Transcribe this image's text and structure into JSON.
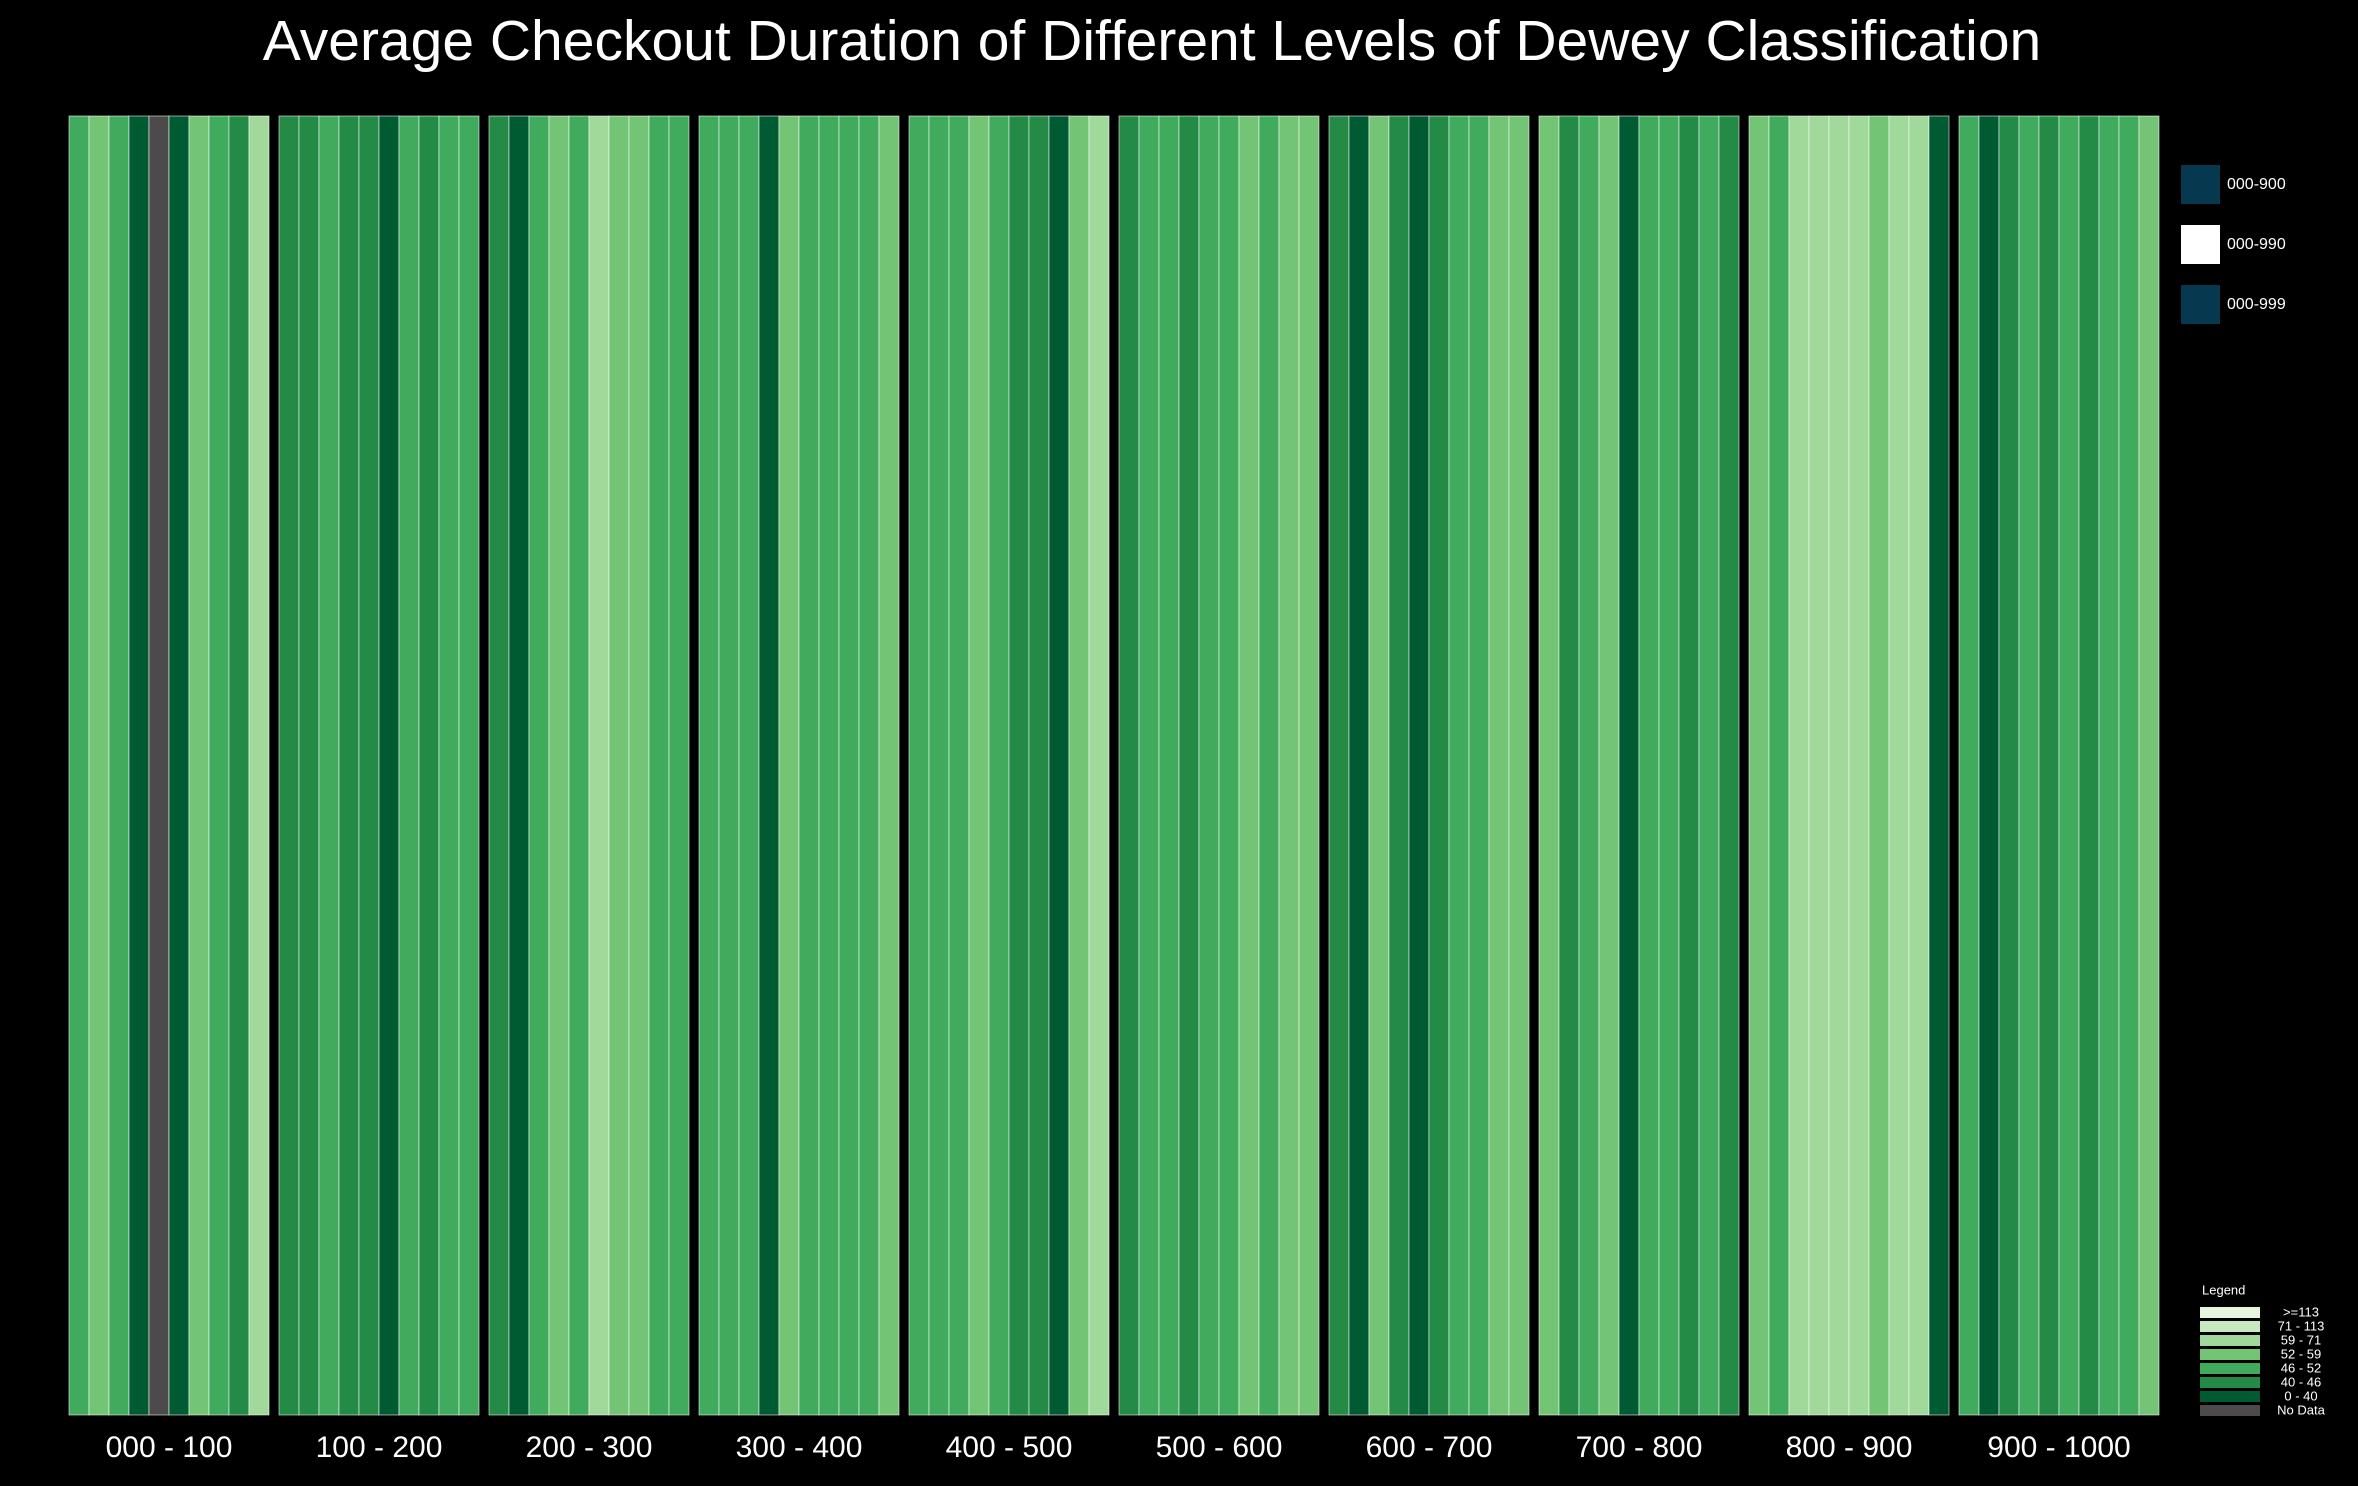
{
  "chart_data": {
    "type": "heatmap",
    "title": "Average Checkout Duration of Different Levels of Dewey Classification",
    "categories": [
      "000 - 100",
      "100 - 200",
      "200 - 300",
      "300 - 400",
      "400 - 500",
      "500 - 600",
      "600 - 700",
      "700 - 800",
      "800 - 900",
      "900 - 1000"
    ],
    "values": [
      [
        49,
        55,
        49,
        35,
        null,
        35,
        55,
        49,
        43,
        65
      ],
      [
        43,
        43,
        49,
        43,
        43,
        35,
        49,
        43,
        49,
        49
      ],
      [
        43,
        35,
        49,
        55,
        49,
        65,
        55,
        55,
        49,
        49
      ],
      [
        49,
        49,
        49,
        35,
        55,
        49,
        49,
        49,
        49,
        55
      ],
      [
        49,
        49,
        49,
        55,
        49,
        43,
        43,
        35,
        55,
        65
      ],
      [
        43,
        49,
        49,
        43,
        49,
        49,
        55,
        49,
        55,
        55
      ],
      [
        43,
        35,
        55,
        43,
        35,
        43,
        49,
        49,
        55,
        55
      ],
      [
        55,
        43,
        49,
        55,
        35,
        49,
        49,
        43,
        49,
        43
      ],
      [
        55,
        49,
        65,
        65,
        65,
        65,
        55,
        65,
        65,
        35
      ],
      [
        49,
        35,
        43,
        49,
        43,
        49,
        43,
        49,
        49,
        55
      ]
    ],
    "range_legend": [
      {
        "label": "000-900",
        "color": "#06384f"
      },
      {
        "label": "000-990",
        "color": "#ffffff"
      },
      {
        "label": "000-999",
        "color": "#06384f"
      }
    ],
    "legend_title": "Legend",
    "legend": [
      {
        "label": ">=113",
        "min": 113,
        "color": "#e5f5e0"
      },
      {
        "label": "71 - 113",
        "min": 71,
        "color": "#c7e9c0"
      },
      {
        "label": "59 - 71",
        "min": 59,
        "color": "#a1d99b"
      },
      {
        "label": "52 - 59",
        "min": 52,
        "color": "#74c476"
      },
      {
        "label": "46 - 52",
        "min": 46,
        "color": "#41ab5d"
      },
      {
        "label": "40 - 46",
        "min": 40,
        "color": "#238b45"
      },
      {
        "label": "0 - 40",
        "min": 0,
        "color": "#005a32"
      },
      {
        "label": "No Data",
        "color": "#4d4a4c"
      }
    ]
  }
}
